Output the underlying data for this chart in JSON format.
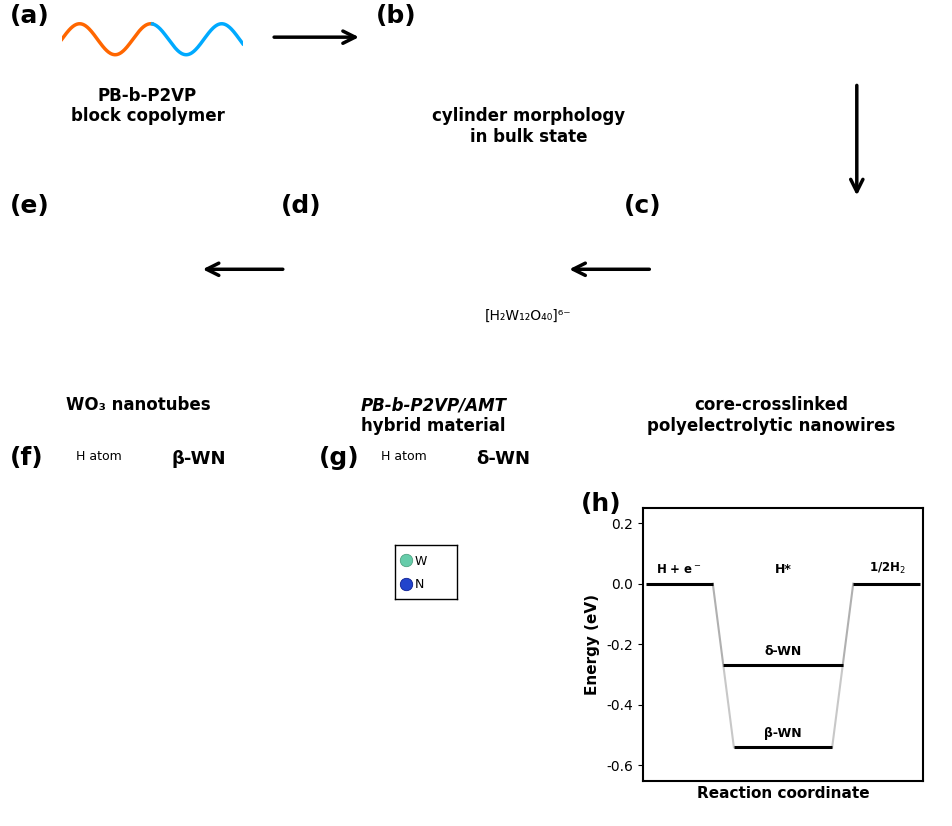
{
  "fig_width": 9.52,
  "fig_height": 8.26,
  "bg_color": "#ffffff",
  "energy": {
    "xlabel": "Reaction coordinate",
    "ylabel": "Energy (eV)",
    "ylim": [
      -0.65,
      0.25
    ],
    "yticks": [
      0.2,
      0.0,
      -0.2,
      -0.4,
      -0.6
    ],
    "ytick_labels": [
      "0.2",
      "0.0",
      "-0.2",
      "-0.4",
      "-0.6"
    ],
    "delta_wn_level": -0.27,
    "beta_wn_level": -0.54,
    "panel_label": "(h)",
    "xlabel_fontsize": 11,
    "ylabel_fontsize": 11,
    "tick_fontsize": 10,
    "panel_label_fontsize": 18
  },
  "texts": {
    "a_label": "(a)",
    "a_cap1": "PB-b-P2VP",
    "a_cap2": "block copolymer",
    "b_label": "(b)",
    "b_cap1": "cylinder morphology",
    "b_cap2": "in bulk state",
    "c_label": "(c)",
    "c_cap1": "core-crosslinked",
    "c_cap2": "polyelectrolytic nanowires",
    "d_label": "(d)",
    "d_cap1": "PB-b-P2VP/AMT",
    "d_cap2": "hybrid material",
    "e_label": "(e)",
    "e_cap1": "WO₃ nanotubes",
    "f_label": "(f)",
    "f_sub": "β-WN",
    "f_hatom": "H atom",
    "g_label": "(g)",
    "g_sub": "δ-WN",
    "g_hatom": "H atom",
    "formula": "[H₂W₁₂O₄₀]⁶⁻"
  },
  "label_fontsize": 18,
  "caption_fontsize": 12,
  "sub_fontsize": 13,
  "hatom_fontsize": 9,
  "formula_fontsize": 10
}
